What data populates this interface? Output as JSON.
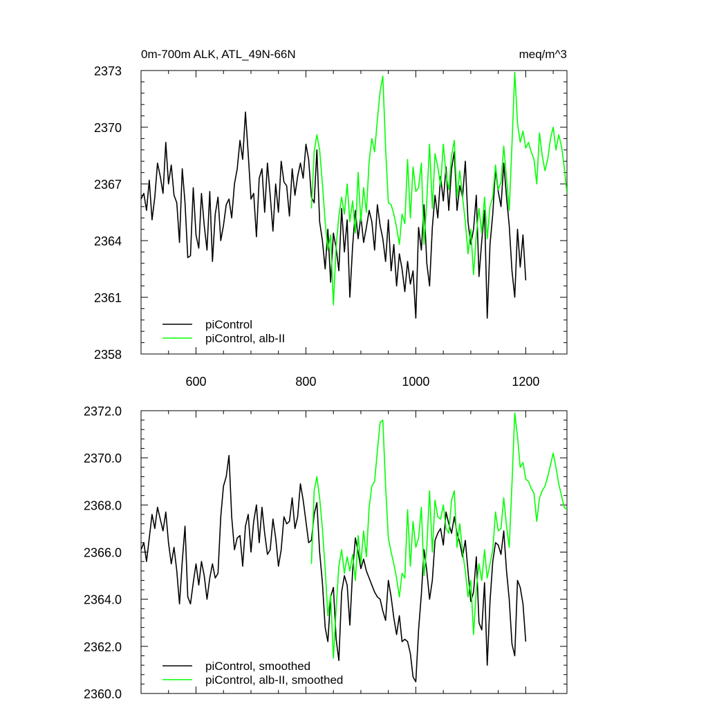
{
  "title_left": "0m-700m ALK, ATL_49N-66N",
  "title_right": "meq/m^3",
  "chart_data": [
    {
      "type": "line",
      "title": "0m-700m ALK, ATL_49N-66N",
      "units": "meq/m^3",
      "xlim": [
        500,
        1275
      ],
      "ylim": [
        2358,
        2373
      ],
      "xticks": [
        600,
        800,
        1000,
        1200
      ],
      "xtick_labels": [
        "600",
        "800",
        "1000",
        "1200"
      ],
      "yticks": [
        2358,
        2361,
        2364,
        2367,
        2370,
        2373
      ],
      "ytick_labels": [
        "2358",
        "2361",
        "2364",
        "2367",
        "2370",
        "2373"
      ],
      "legend": [
        "piControl",
        "piControl, alb-II"
      ],
      "series": [
        {
          "name": "piControl",
          "color": "#000000",
          "x": [
            500,
            505,
            510,
            515,
            520,
            525,
            530,
            535,
            540,
            545,
            550,
            555,
            560,
            565,
            570,
            575,
            580,
            585,
            590,
            595,
            600,
            605,
            610,
            615,
            620,
            625,
            630,
            635,
            640,
            645,
            650,
            655,
            660,
            665,
            670,
            675,
            680,
            685,
            690,
            695,
            700,
            705,
            710,
            715,
            720,
            725,
            730,
            735,
            740,
            745,
            750,
            755,
            760,
            765,
            770,
            775,
            780,
            785,
            790,
            795,
            800,
            805,
            810,
            815,
            820,
            825,
            830,
            835,
            840,
            845,
            850,
            855,
            860,
            865,
            870,
            875,
            880,
            885,
            890,
            895,
            900,
            905,
            910,
            915,
            920,
            925,
            930,
            935,
            940,
            945,
            950,
            955,
            960,
            965,
            970,
            975,
            980,
            985,
            990,
            995,
            1000,
            1005,
            1010,
            1015,
            1020,
            1025,
            1030,
            1035,
            1040,
            1045,
            1050,
            1055,
            1060,
            1065,
            1070,
            1075,
            1080,
            1085,
            1090,
            1095,
            1100,
            1105,
            1110,
            1115,
            1120,
            1125,
            1130,
            1135,
            1140,
            1145,
            1150,
            1155,
            1160,
            1165,
            1170,
            1175,
            1180,
            1185,
            1190,
            1195,
            1200
          ],
          "y": [
            2366.2,
            2366.5,
            2365.6,
            2367.2,
            2365.1,
            2366.3,
            2368.1,
            2367.4,
            2366.5,
            2369.2,
            2367.0,
            2368.0,
            2366.4,
            2366.0,
            2363.9,
            2367.8,
            2366.0,
            2363.1,
            2363.2,
            2366.8,
            2364.3,
            2363.6,
            2366.5,
            2364.8,
            2363.5,
            2366.6,
            2362.9,
            2365.4,
            2366.3,
            2364.0,
            2364.8,
            2365.9,
            2366.2,
            2365.2,
            2367.0,
            2367.8,
            2369.3,
            2368.3,
            2370.8,
            2368.6,
            2366.2,
            2366.5,
            2364.2,
            2367.3,
            2367.8,
            2365.5,
            2368.1,
            2366.4,
            2364.5,
            2367.0,
            2365.5,
            2368.2,
            2367.1,
            2366.9,
            2365.3,
            2367.8,
            2366.4,
            2367.4,
            2368.1,
            2367.3,
            2369.1,
            2368.3,
            2366.3,
            2366.0,
            2368.8,
            2365.0,
            2364.0,
            2362.5,
            2364.6,
            2361.8,
            2364.4,
            2363.6,
            2362.4,
            2365.7,
            2363.4,
            2365.1,
            2361.0,
            2363.7,
            2365.6,
            2364.1,
            2365.3,
            2363.9,
            2364.7,
            2365.6,
            2365.0,
            2363.5,
            2365.9,
            2364.8,
            2364.1,
            2362.9,
            2365.1,
            2362.4,
            2363.8,
            2361.6,
            2363.3,
            2362.5,
            2361.3,
            2362.9,
            2361.7,
            2362.4,
            2359.9,
            2364.7,
            2363.5,
            2365.9,
            2362.8,
            2361.6,
            2364.7,
            2366.4,
            2365.2,
            2367.4,
            2366.1,
            2367.9,
            2365.6,
            2367.8,
            2368.7,
            2365.6,
            2366.9,
            2366.3,
            2368.2,
            2365.0,
            2363.8,
            2364.6,
            2366.4,
            2362.1,
            2364.0,
            2365.6,
            2359.9,
            2363.8,
            2365.4,
            2367.8,
            2366.6,
            2365.8,
            2368.1,
            2366.3,
            2364.8,
            2362.4,
            2361.0,
            2364.6,
            2362.6,
            2364.3,
            2361.9
          ]
        },
        {
          "name": "piControl, alb-II",
          "color": "#00ff00",
          "x": [
            810,
            815,
            820,
            825,
            830,
            835,
            840,
            845,
            850,
            855,
            860,
            865,
            870,
            875,
            880,
            885,
            890,
            895,
            900,
            905,
            910,
            915,
            920,
            925,
            930,
            935,
            940,
            945,
            950,
            955,
            960,
            965,
            970,
            975,
            980,
            985,
            990,
            995,
            1000,
            1005,
            1010,
            1015,
            1020,
            1025,
            1030,
            1035,
            1040,
            1045,
            1050,
            1055,
            1060,
            1065,
            1070,
            1075,
            1080,
            1085,
            1090,
            1095,
            1100,
            1105,
            1110,
            1115,
            1120,
            1125,
            1130,
            1135,
            1140,
            1145,
            1150,
            1155,
            1160,
            1165,
            1170,
            1175,
            1180,
            1185,
            1190,
            1195,
            1200,
            1205,
            1210,
            1215,
            1220,
            1225,
            1230,
            1235,
            1240,
            1245,
            1250,
            1255,
            1260,
            1265,
            1270,
            1275
          ],
          "y": [
            2365.7,
            2368.7,
            2369.6,
            2368.8,
            2367.0,
            2365.0,
            2363.5,
            2364.3,
            2360.6,
            2363.7,
            2365.3,
            2366.3,
            2365.4,
            2367.0,
            2365.0,
            2366.1,
            2364.4,
            2367.6,
            2365.0,
            2366.8,
            2365.5,
            2368.2,
            2369.4,
            2368.7,
            2370.4,
            2371.9,
            2372.7,
            2368.9,
            2366.0,
            2365.9,
            2365.4,
            2364.7,
            2363.8,
            2365.4,
            2364.9,
            2368.3,
            2365.2,
            2367.9,
            2366.6,
            2366.8,
            2368.1,
            2363.8,
            2366.1,
            2369.1,
            2365.7,
            2368.6,
            2367.9,
            2366.9,
            2369.1,
            2367.5,
            2366.7,
            2368.5,
            2369.3,
            2366.3,
            2367.7,
            2366.3,
            2365.0,
            2363.3,
            2364.6,
            2362.2,
            2364.3,
            2365.7,
            2364.4,
            2366.3,
            2364.1,
            2365.8,
            2366.3,
            2368.0,
            2366.7,
            2367.1,
            2369.0,
            2367.3,
            2365.6,
            2369.1,
            2372.9,
            2370.2,
            2369.2,
            2369.8,
            2368.9,
            2369.2,
            2368.7,
            2368.3,
            2367.0,
            2369.7,
            2368.5,
            2367.7,
            2368.3,
            2369.4,
            2370.0,
            2368.8,
            2369.6,
            2369.0,
            2367.9,
            2366.5
          ]
        }
      ]
    },
    {
      "type": "line",
      "xlim": [
        500,
        1275
      ],
      "ylim": [
        2360.0,
        2372.0
      ],
      "xticks": [
        600,
        800,
        1000,
        1200
      ],
      "yticks": [
        2360,
        2362,
        2364,
        2366,
        2368,
        2370,
        2372
      ],
      "ytick_labels": [
        "2360.0",
        "2362.0",
        "2364.0",
        "2366.0",
        "2368.0",
        "2370.0",
        "2372.0"
      ],
      "legend": [
        "piControl, smoothed",
        "piControl, alb-II, smoothed"
      ],
      "series": [
        {
          "name": "piControl, smoothed",
          "color": "#000000",
          "x": [
            500,
            505,
            510,
            515,
            520,
            525,
            530,
            535,
            540,
            545,
            550,
            555,
            560,
            565,
            570,
            575,
            580,
            585,
            590,
            595,
            600,
            605,
            610,
            615,
            620,
            625,
            630,
            635,
            640,
            645,
            650,
            655,
            660,
            665,
            670,
            675,
            680,
            685,
            690,
            695,
            700,
            705,
            710,
            715,
            720,
            725,
            730,
            735,
            740,
            745,
            750,
            755,
            760,
            765,
            770,
            775,
            780,
            785,
            790,
            795,
            800,
            805,
            810,
            815,
            820,
            825,
            830,
            835,
            840,
            845,
            850,
            855,
            860,
            865,
            870,
            875,
            880,
            885,
            890,
            895,
            900,
            905,
            910,
            915,
            920,
            925,
            930,
            935,
            940,
            945,
            950,
            955,
            960,
            965,
            970,
            975,
            980,
            985,
            990,
            995,
            1000,
            1005,
            1010,
            1015,
            1020,
            1025,
            1030,
            1035,
            1040,
            1045,
            1050,
            1055,
            1060,
            1065,
            1070,
            1075,
            1080,
            1085,
            1090,
            1095,
            1100,
            1105,
            1110,
            1115,
            1120,
            1125,
            1130,
            1135,
            1140,
            1145,
            1150,
            1155,
            1160,
            1165,
            1170,
            1175,
            1180,
            1185,
            1190,
            1195,
            1200
          ],
          "y": [
            2366.1,
            2366.4,
            2365.6,
            2366.6,
            2367.6,
            2367.0,
            2367.9,
            2367.4,
            2366.9,
            2367.7,
            2366.4,
            2365.5,
            2366.2,
            2365.2,
            2363.8,
            2365.6,
            2367.1,
            2364.1,
            2363.8,
            2364.7,
            2365.5,
            2364.6,
            2365.6,
            2365.0,
            2364.0,
            2364.9,
            2365.5,
            2364.9,
            2365.1,
            2367.5,
            2368.8,
            2369.2,
            2370.1,
            2367.5,
            2366.1,
            2366.6,
            2366.7,
            2365.4,
            2367.1,
            2367.6,
            2366.0,
            2367.3,
            2368.0,
            2366.4,
            2367.9,
            2366.8,
            2365.9,
            2366.1,
            2367.4,
            2366.6,
            2365.4,
            2366.1,
            2367.5,
            2367.2,
            2367.3,
            2368.3,
            2367.0,
            2367.5,
            2368.9,
            2368.2,
            2367.3,
            2366.4,
            2366.5,
            2367.6,
            2368.1,
            2366.0,
            2364.7,
            2362.8,
            2362.2,
            2364.1,
            2364.5,
            2362.3,
            2361.4,
            2364.3,
            2365.0,
            2364.6,
            2362.9,
            2365.2,
            2366.6,
            2366.0,
            2365.3,
            2365.7,
            2365.2,
            2364.9,
            2364.6,
            2364.3,
            2364.1,
            2364.0,
            2363.5,
            2363.1,
            2364.8,
            2364.1,
            2363.2,
            2362.5,
            2363.3,
            2362.2,
            2362.3,
            2362.2,
            2361.7,
            2360.7,
            2360.5,
            2362.7,
            2364.2,
            2366.1,
            2365.2,
            2364.0,
            2364.8,
            2366.5,
            2366.8,
            2367.0,
            2366.3,
            2367.7,
            2367.2,
            2366.8,
            2367.5,
            2366.8,
            2366.4,
            2365.8,
            2366.5,
            2365.2,
            2363.9,
            2364.3,
            2365.8,
            2363.0,
            2362.7,
            2364.7,
            2361.2,
            2363.9,
            2365.6,
            2366.4,
            2366.3,
            2365.9,
            2366.9,
            2365.2,
            2364.0,
            2362.1,
            2361.6,
            2364.8,
            2364.5,
            2363.8,
            2362.2
          ]
        },
        {
          "name": "piControl, alb-II, smoothed",
          "color": "#00ff00",
          "x": [
            810,
            815,
            820,
            825,
            830,
            835,
            840,
            845,
            850,
            855,
            860,
            865,
            870,
            875,
            880,
            885,
            890,
            895,
            900,
            905,
            910,
            915,
            920,
            925,
            930,
            935,
            940,
            945,
            950,
            955,
            960,
            965,
            970,
            975,
            980,
            985,
            990,
            995,
            1000,
            1005,
            1010,
            1015,
            1020,
            1025,
            1030,
            1035,
            1040,
            1045,
            1050,
            1055,
            1060,
            1065,
            1070,
            1075,
            1080,
            1085,
            1090,
            1095,
            1100,
            1105,
            1110,
            1115,
            1120,
            1125,
            1130,
            1135,
            1140,
            1145,
            1150,
            1155,
            1160,
            1165,
            1170,
            1175,
            1180,
            1185,
            1190,
            1195,
            1200,
            1205,
            1210,
            1215,
            1220,
            1225,
            1230,
            1235,
            1240,
            1245,
            1250,
            1255,
            1260,
            1265,
            1270,
            1275
          ],
          "y": [
            2365.5,
            2368.6,
            2369.2,
            2368.3,
            2367.0,
            2365.3,
            2363.3,
            2364.2,
            2361.5,
            2363.6,
            2365.4,
            2366.1,
            2365.1,
            2365.8,
            2365.2,
            2365.9,
            2364.8,
            2366.7,
            2365.5,
            2366.9,
            2365.8,
            2367.9,
            2368.8,
            2369.0,
            2370.3,
            2371.5,
            2371.6,
            2368.8,
            2366.6,
            2366.0,
            2365.5,
            2364.9,
            2364.1,
            2365.1,
            2364.9,
            2367.8,
            2365.4,
            2367.3,
            2366.2,
            2366.6,
            2367.9,
            2365.0,
            2366.2,
            2368.6,
            2366.0,
            2368.2,
            2367.5,
            2367.4,
            2368.0,
            2367.0,
            2366.8,
            2368.2,
            2368.6,
            2366.2,
            2367.2,
            2366.0,
            2365.2,
            2364.1,
            2364.8,
            2362.5,
            2364.4,
            2365.5,
            2364.8,
            2366.1,
            2364.9,
            2365.5,
            2366.1,
            2367.7,
            2366.9,
            2367.0,
            2368.3,
            2367.1,
            2366.2,
            2368.9,
            2371.9,
            2370.9,
            2369.6,
            2369.8,
            2369.1,
            2369.0,
            2368.7,
            2368.5,
            2367.3,
            2368.3,
            2368.6,
            2368.8,
            2369.2,
            2369.7,
            2370.2,
            2369.6,
            2368.9,
            2368.4,
            2367.9,
            2367.8
          ]
        }
      ]
    }
  ]
}
